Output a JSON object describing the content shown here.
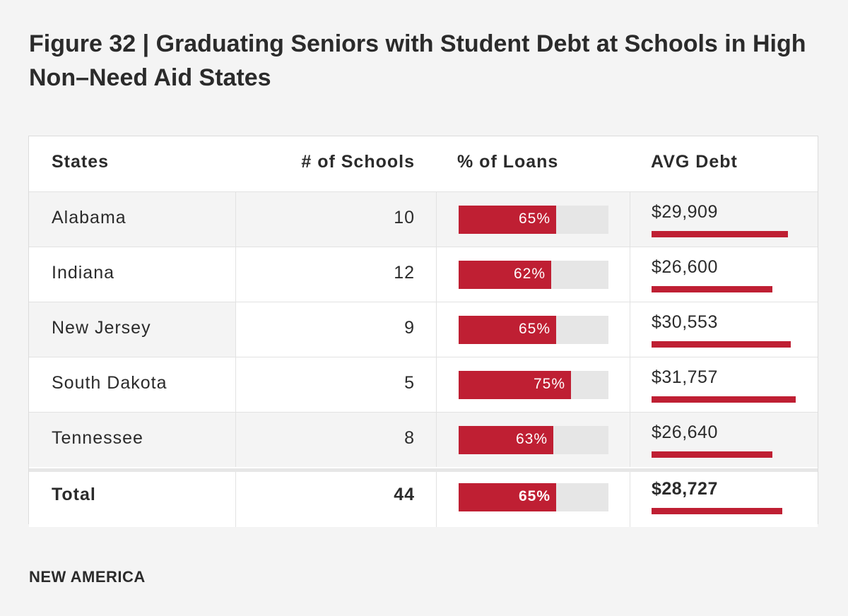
{
  "title": "Figure 32 | Graduating Seniors with Student Debt at Schools in High Non–Need Aid States",
  "columns": {
    "states": "States",
    "schools": "# of Schools",
    "loans": "% of Loans",
    "debt": "AVG Debt"
  },
  "colors": {
    "accent": "#bf1f33",
    "track": "#e6e6e6"
  },
  "rows": [
    {
      "state": "Alabama",
      "schools": "10",
      "loans_label": "65%",
      "loans": 65,
      "debt_label": "$29,909",
      "debt": 29909
    },
    {
      "state": "Indiana",
      "schools": "12",
      "loans_label": "62%",
      "loans": 62,
      "debt_label": "$26,600",
      "debt": 26600
    },
    {
      "state": "New Jersey",
      "schools": "9",
      "loans_label": "65%",
      "loans": 65,
      "debt_label": "$30,553",
      "debt": 30553
    },
    {
      "state": "South Dakota",
      "schools": "5",
      "loans_label": "75%",
      "loans": 75,
      "debt_label": "$31,757",
      "debt": 31757
    },
    {
      "state": "Tennessee",
      "schools": "8",
      "loans_label": "63%",
      "loans": 63,
      "debt_label": "$26,640",
      "debt": 26640
    }
  ],
  "total": {
    "state": "Total",
    "schools": "44",
    "loans_label": "65%",
    "loans": 65,
    "debt_label": "$28,727",
    "debt": 28727
  },
  "chart_data": {
    "type": "table",
    "columns": [
      "States",
      "# of Schools",
      "% of Loans",
      "AVG Debt"
    ],
    "rows": [
      [
        "Alabama",
        10,
        65,
        29909
      ],
      [
        "Indiana",
        12,
        62,
        26600
      ],
      [
        "New Jersey",
        9,
        65,
        30553
      ],
      [
        "South Dakota",
        5,
        75,
        31757
      ],
      [
        "Tennessee",
        8,
        63,
        26640
      ],
      [
        "Total",
        44,
        65,
        28727
      ]
    ],
    "loans_range": [
      0,
      100
    ],
    "debt_range": [
      0,
      32000
    ]
  },
  "footer": {
    "brand": "NEW AMERICA"
  }
}
